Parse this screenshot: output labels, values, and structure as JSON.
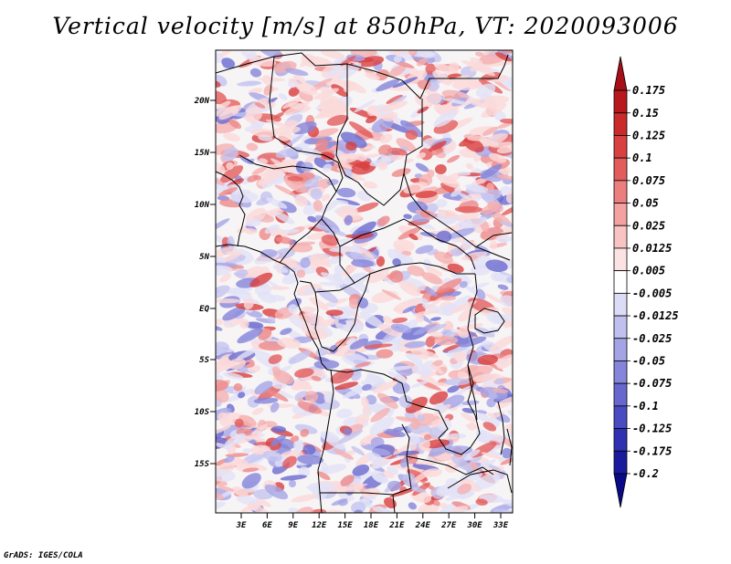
{
  "title": "Vertical velocity [m/s] at 850hPa, VT: 2020093006",
  "credit": "GrADS: IGES/COLA",
  "lat_labels": [
    "20N",
    "15N",
    "10N",
    "5N",
    "EQ",
    "5S",
    "10S",
    "15S"
  ],
  "lon_labels": [
    "3E",
    "6E",
    "9E",
    "12E",
    "15E",
    "18E",
    "21E",
    "24E",
    "27E",
    "30E",
    "33E"
  ],
  "colorbar": {
    "labels": [
      "0.175",
      "0.15",
      "0.125",
      "0.1",
      "0.075",
      "0.05",
      "0.025",
      "0.0125",
      "0.005",
      "-0.005",
      "-0.0125",
      "-0.025",
      "-0.05",
      "-0.075",
      "-0.1",
      "-0.125",
      "-0.175",
      "-0.2"
    ],
    "colors": [
      "#a50f15",
      "#b8181d",
      "#cb2a2a",
      "#d94040",
      "#e35c5c",
      "#ec7e7e",
      "#f3a1a1",
      "#f8c3c3",
      "#fce3e3",
      "#ffffff",
      "#dcdcf6",
      "#c0c0ef",
      "#a3a3e6",
      "#8585db",
      "#6767cf",
      "#4a4ac2",
      "#3030b2",
      "#1a1a9e",
      "#0a0a86"
    ]
  },
  "colors": {
    "positive": "#e04848",
    "negative": "#5a5ad8",
    "border": "#000000"
  }
}
